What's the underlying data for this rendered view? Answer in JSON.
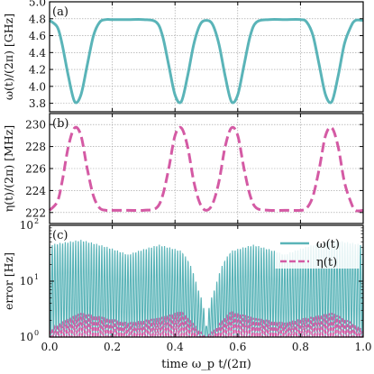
{
  "figure": {
    "xlabel": "time ω_p t/(2π)",
    "panels": [
      {
        "tag": "(a)",
        "ylabel": "ω(t)/(2π) [GHz]"
      },
      {
        "tag": "(b)",
        "ylabel": "η(t)/(2π) [MHz]"
      },
      {
        "tag": "(c)",
        "ylabel": "error [Hz]"
      }
    ],
    "legend": [
      {
        "label": "ω(t)",
        "color": "#5ab4b8",
        "style": "solid"
      },
      {
        "label": "η(t)",
        "color": "#d45aa4",
        "style": "dashed"
      }
    ],
    "colors": {
      "omega": "#5ab4b8",
      "eta": "#d45aa4"
    }
  },
  "chart_data": [
    {
      "type": "line",
      "panel": "(a)",
      "ylabel": "ω(t)/(2π) [GHz]",
      "xlim": [
        0,
        1
      ],
      "ylim": [
        3.7,
        5.0
      ],
      "xticks": [
        0.0,
        0.2,
        0.4,
        0.6,
        0.8,
        1.0
      ],
      "yticks": [
        "3.8",
        "4.0",
        "4.2",
        "4.4",
        "4.6",
        "4.8",
        "5.0"
      ],
      "grid": true,
      "series": [
        {
          "x": [
            0.0,
            0.025,
            0.04,
            0.06,
            0.08,
            0.1,
            0.12,
            0.14,
            0.16,
            0.18,
            0.2,
            0.25,
            0.3,
            0.34,
            0.36,
            0.38,
            0.4,
            0.42,
            0.44,
            0.46,
            0.48,
            0.5,
            0.52,
            0.54,
            0.56,
            0.58,
            0.6,
            0.62,
            0.64,
            0.66,
            0.7,
            0.75,
            0.8,
            0.82,
            0.84,
            0.86,
            0.88,
            0.9,
            0.92,
            0.94,
            0.96,
            0.975,
            1.0
          ],
          "values": [
            4.78,
            4.7,
            4.5,
            4.12,
            3.82,
            3.9,
            4.25,
            4.6,
            4.76,
            4.79,
            4.79,
            4.79,
            4.79,
            4.76,
            4.6,
            4.25,
            3.9,
            3.82,
            4.12,
            4.5,
            4.73,
            4.78,
            4.73,
            4.5,
            4.12,
            3.82,
            3.9,
            4.25,
            4.6,
            4.76,
            4.79,
            4.79,
            4.79,
            4.76,
            4.6,
            4.25,
            3.9,
            3.82,
            4.12,
            4.5,
            4.7,
            4.78,
            4.78
          ]
        }
      ]
    },
    {
      "type": "line",
      "panel": "(b)",
      "ylabel": "η(t)/(2π) [MHz]",
      "xlim": [
        0,
        1
      ],
      "ylim": [
        221,
        231
      ],
      "xticks": [
        0.0,
        0.2,
        0.4,
        0.6,
        0.8,
        1.0
      ],
      "yticks": [
        "222",
        "224",
        "226",
        "228",
        "230"
      ],
      "grid": true,
      "series": [
        {
          "x": [
            0.0,
            0.025,
            0.04,
            0.06,
            0.08,
            0.1,
            0.12,
            0.14,
            0.16,
            0.18,
            0.2,
            0.25,
            0.3,
            0.34,
            0.36,
            0.38,
            0.4,
            0.42,
            0.44,
            0.46,
            0.48,
            0.5,
            0.52,
            0.54,
            0.56,
            0.58,
            0.6,
            0.62,
            0.64,
            0.66,
            0.7,
            0.75,
            0.8,
            0.82,
            0.84,
            0.86,
            0.88,
            0.9,
            0.92,
            0.94,
            0.96,
            0.975,
            1.0
          ],
          "values": [
            222.2,
            223.0,
            224.8,
            228.0,
            229.7,
            229.0,
            226.0,
            223.5,
            222.4,
            222.2,
            222.2,
            222.2,
            222.2,
            222.4,
            223.5,
            226.0,
            229.0,
            229.7,
            228.0,
            224.8,
            222.8,
            222.2,
            222.8,
            224.8,
            228.0,
            229.7,
            229.0,
            226.0,
            223.5,
            222.4,
            222.2,
            222.2,
            222.2,
            222.4,
            223.5,
            226.0,
            229.0,
            229.7,
            228.0,
            224.8,
            223.0,
            222.2,
            222.2
          ]
        }
      ]
    },
    {
      "type": "line",
      "panel": "(c)",
      "ylabel": "error [Hz]",
      "xlim": [
        0,
        1
      ],
      "ylim": [
        1,
        100
      ],
      "yscale": "log",
      "xticks": [
        0.0,
        0.2,
        0.4,
        0.6,
        0.8,
        1.0
      ],
      "legend_position": "top-right",
      "series": [
        {
          "name": "ω(t)",
          "x": [
            0.0,
            0.1,
            0.25,
            0.35,
            0.42,
            0.47,
            0.5,
            0.53,
            0.58,
            0.65,
            0.75,
            0.9,
            1.0
          ],
          "values": [
            45,
            55,
            30,
            45,
            35,
            8,
            1.5,
            8,
            35,
            45,
            30,
            55,
            45
          ]
        },
        {
          "name": "η(t)",
          "x": [
            0.0,
            0.1,
            0.25,
            0.35,
            0.42,
            0.47,
            0.5,
            0.53,
            0.58,
            0.65,
            0.75,
            0.9,
            1.0
          ],
          "values": [
            1.3,
            2.7,
            1.8,
            2.2,
            2.9,
            1.4,
            1.0,
            1.4,
            2.9,
            2.2,
            1.8,
            2.7,
            1.3
          ]
        }
      ]
    }
  ]
}
